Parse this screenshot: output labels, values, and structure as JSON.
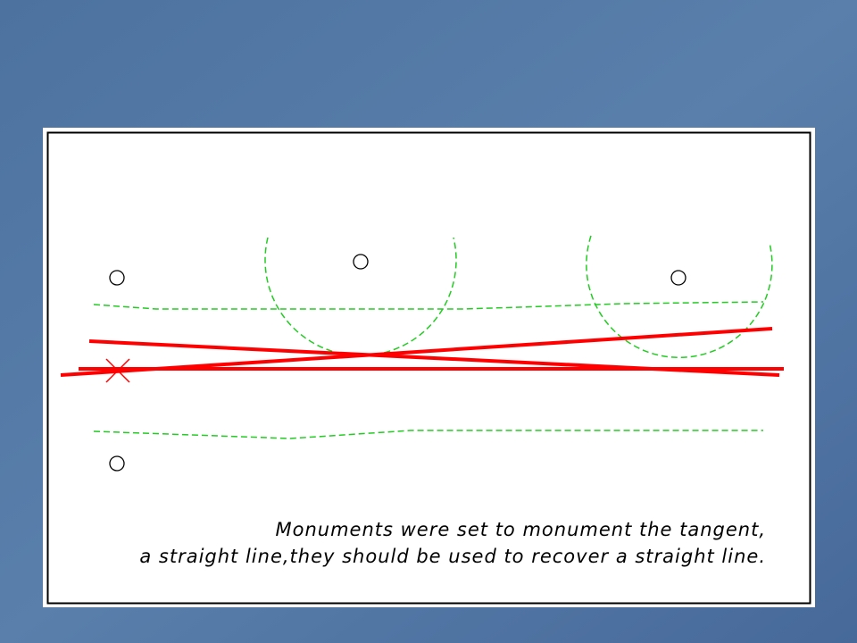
{
  "caption": {
    "lines": [
      "Monuments were set to monument the tangent,",
      "a straight line,they should be used to recover a straight line."
    ]
  }
}
